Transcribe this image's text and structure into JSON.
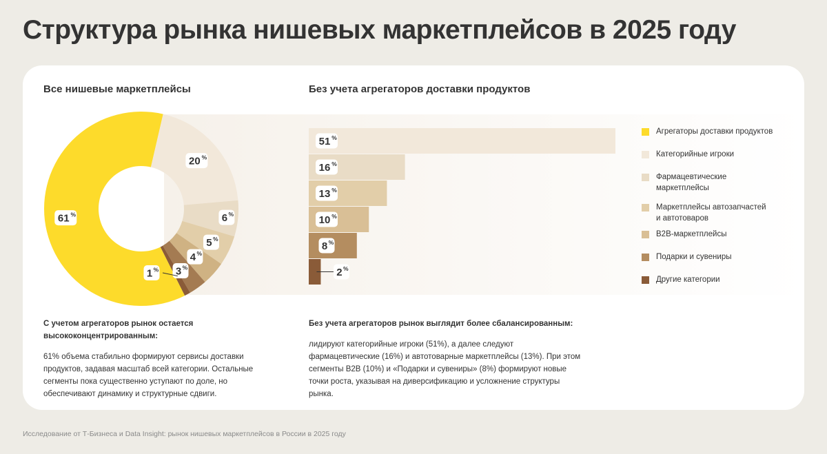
{
  "page_title": "Структура рынка нишевых маркетплейсов в 2025 году",
  "footer": "Исследование от Т-Бизнеса и Data Insight: рынок нишевых маркетплейсов в России в 2025 году",
  "colors": {
    "background": "#eeece6",
    "card": "#ffffff",
    "text": "#333333",
    "fade_band": "#f6f1ea"
  },
  "chart_data": [
    {
      "type": "pie",
      "title": "Все нишевые маркетплейсы",
      "donut": true,
      "slices": [
        {
          "name": "Агрегаторы доставки продуктов",
          "value": 61,
          "label": "61",
          "color": "#fddb2b"
        },
        {
          "name": "Категорийные игроки",
          "value": 20,
          "label": "20",
          "color": "#f2e8da"
        },
        {
          "name": "Фармацевтические маркетплейсы",
          "value": 6,
          "label": "6",
          "color": "#e9dcc6"
        },
        {
          "name": "Маркетплейсы автозапчастей и автотоваров",
          "value": 5,
          "label": "5",
          "color": "#e2cea9"
        },
        {
          "name": "B2B-маркетплейсы",
          "value": 4,
          "label": "4",
          "color": "#cfb283"
        },
        {
          "name": "Подарки и сувениры",
          "value": 3,
          "label": "3",
          "color": "#a47b52"
        },
        {
          "name": "Другие категории",
          "value": 1,
          "label": "1",
          "color": "#8a5b38"
        }
      ],
      "percent_sign": "%"
    },
    {
      "type": "bar",
      "orientation": "horizontal",
      "title": "Без учета агрегаторов доставки продуктов",
      "categories": [
        "Категорийные игроки",
        "Фармацевтические маркетплейсы",
        "Маркетплейсы автозапчастей и автотоваров",
        "B2B-маркетплейсы",
        "Подарки и сувениры",
        "Другие категории"
      ],
      "values": [
        51,
        16,
        13,
        10,
        8,
        2
      ],
      "labels": [
        "51",
        "16",
        "13",
        "10",
        "8",
        "2"
      ],
      "colors": [
        "#f2e8da",
        "#e9dcc6",
        "#e2cea9",
        "#d9bf96",
        "#b48d60",
        "#8a5b38"
      ],
      "percent_sign": "%",
      "xlim": [
        0,
        51
      ]
    }
  ],
  "legend": [
    {
      "label": "Агрегаторы доставки продуктов",
      "color": "#fddb2b"
    },
    {
      "label": "Категорийные игроки",
      "color": "#f2e8da"
    },
    {
      "label": "Фармацевтические маркетплейсы",
      "color": "#e9dcc6"
    },
    {
      "label": "Маркетплейсы автозапчастей и автотоваров",
      "color": "#e2cea9"
    },
    {
      "label": "B2B-маркетплейсы",
      "color": "#d9bf96"
    },
    {
      "label": "Подарки и сувениры",
      "color": "#b48d60"
    },
    {
      "label": "Другие категории",
      "color": "#8a5b38"
    }
  ],
  "notes": {
    "left_head": "С учетом агрегаторов рынок остается высококонцентрированным:",
    "left_body": "61% объема стабильно формируют сервисы доставки продуктов, задавая масштаб всей категории. Остальные сегменты пока существенно уступают по доле, но обеспечивают динамику и структурные сдвиги.",
    "right_head": "Без учета агрегаторов рынок выглядит более сбалансированным:",
    "right_body": "лидируют категорийные игроки (51%), а далее следуют фармацевтические (16%) и автотоварные маркетплейсы (13%). При этом сегменты B2B (10%) и «Подарки и сувениры» (8%) формируют новые точки роста, указывая на диверсификацию и усложнение структуры рынка."
  }
}
